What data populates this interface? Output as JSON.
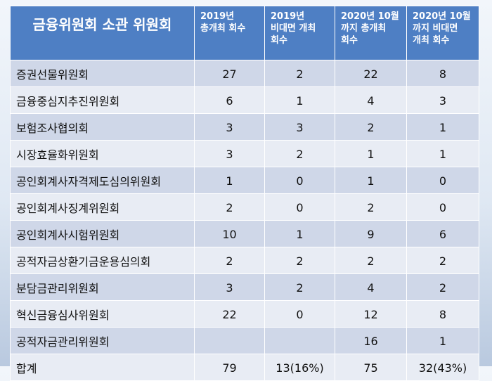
{
  "table": {
    "title": "금융위원회 소관 위원회",
    "columns": [
      "2019년\n총개최 회수",
      "2019년\n비대면 개최\n회수",
      "2020년 10월\n까지 총개최\n회수",
      "2020년 10월\n까지 비대면\n개최 회수"
    ],
    "rows": [
      {
        "name": "증권선물위원회",
        "values": [
          "27",
          "2",
          "22",
          "8"
        ]
      },
      {
        "name": "금융중심지추진위원회",
        "values": [
          "6",
          "1",
          "4",
          "3"
        ]
      },
      {
        "name": "보험조사협의회",
        "values": [
          "3",
          "3",
          "2",
          "1"
        ]
      },
      {
        "name": "시장효율화위원회",
        "values": [
          "3",
          "2",
          "1",
          "1"
        ]
      },
      {
        "name": "공인회계사자격제도심의위원회",
        "values": [
          "1",
          "0",
          "1",
          "0"
        ]
      },
      {
        "name": "공인회계사징계위원회",
        "values": [
          "2",
          "0",
          "2",
          "0"
        ]
      },
      {
        "name": "공인회계사시험위원회",
        "values": [
          "10",
          "1",
          "9",
          "6"
        ]
      },
      {
        "name": "공적자금상환기금운용심의회",
        "values": [
          "2",
          "2",
          "2",
          "2"
        ]
      },
      {
        "name": "분담금관리위원회",
        "values": [
          "3",
          "2",
          "4",
          "2"
        ]
      },
      {
        "name": "혁신금융심사위원회",
        "values": [
          "22",
          "0",
          "12",
          "8"
        ]
      },
      {
        "name": "공적자금관리위원회",
        "values": [
          "",
          "",
          "16",
          "1"
        ]
      },
      {
        "name": "합계",
        "values": [
          "79",
          "13(16%)",
          "75",
          "32(43%)"
        ]
      }
    ]
  }
}
